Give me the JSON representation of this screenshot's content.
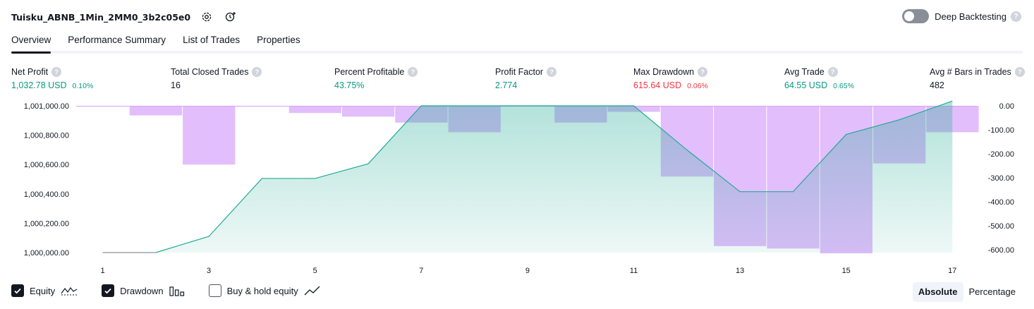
{
  "header": {
    "title": "Tuisku_ABNB_1Min_2MM0_3b2c05e0",
    "deep_backtesting_label": "Deep Backtesting",
    "help_glyph": "?"
  },
  "tabs": [
    {
      "label": "Overview",
      "active": true
    },
    {
      "label": "Performance Summary",
      "active": false
    },
    {
      "label": "List of Trades",
      "active": false
    },
    {
      "label": "Properties",
      "active": false
    }
  ],
  "metrics": {
    "net_profit": {
      "label": "Net Profit",
      "value": "1,032.78 USD",
      "pct": "0.10%"
    },
    "total_closed_trades": {
      "label": "Total Closed Trades",
      "value": "16"
    },
    "percent_profitable": {
      "label": "Percent Profitable",
      "value": "43.75%"
    },
    "profit_factor": {
      "label": "Profit Factor",
      "value": "2.774"
    },
    "max_drawdown": {
      "label": "Max Drawdown",
      "value": "615.64 USD",
      "pct": "0.06%"
    },
    "avg_trade": {
      "label": "Avg Trade",
      "value": "64.55 USD",
      "pct": "0.65%"
    },
    "avg_bars": {
      "label": "Avg # Bars in Trades",
      "value": "482"
    }
  },
  "colors": {
    "equity_line": "#22ab94",
    "equity_fill": "#22ab94",
    "drawdown_bar": "#ce93fa",
    "buy_hold_line": "#8d8f99",
    "positive": "#089981",
    "negative": "#f23645"
  },
  "chart_data": {
    "type": "line",
    "x": [
      1,
      2,
      3,
      4,
      5,
      6,
      7,
      8,
      9,
      10,
      11,
      12,
      13,
      14,
      15,
      16,
      17
    ],
    "x_ticks": [
      "1",
      "3",
      "5",
      "7",
      "9",
      "11",
      "13",
      "15",
      "17"
    ],
    "left_axis_ticks": [
      "1,001,000.00",
      "1,000,800.00",
      "1,000,600.00",
      "1,000,400.00",
      "1,000,200.00",
      "1,000,000.00"
    ],
    "right_axis_ticks": [
      "0.00",
      "-100.00",
      "-200.00",
      "-300.00",
      "-400.00",
      "-500.00",
      "-600.00"
    ],
    "ylim_left": [
      1000000,
      1001000
    ],
    "ylim_right": [
      -600,
      0
    ],
    "series": [
      {
        "name": "Equity",
        "kind": "area",
        "values": [
          1000000,
          1000000,
          1000110,
          1000505,
          1000505,
          1000605,
          1001000,
          1001000,
          1001000,
          1001000,
          1001000,
          1000700,
          1000415,
          1000415,
          1000805,
          1000905,
          1001033
        ]
      },
      {
        "name": "Drawdown",
        "kind": "bar",
        "values": [
          -3,
          -40,
          -245,
          -3,
          -30,
          -45,
          -70,
          -110,
          -3,
          -70,
          -25,
          -295,
          -585,
          -595,
          -615,
          -240,
          -110
        ]
      }
    ],
    "grid": false,
    "legend": "bottom-left"
  },
  "legend": [
    {
      "label": "Equity",
      "checked": true
    },
    {
      "label": "Drawdown",
      "checked": true
    },
    {
      "label": "Buy & hold equity",
      "checked": false
    }
  ],
  "modes": [
    {
      "label": "Absolute",
      "active": true
    },
    {
      "label": "Percentage",
      "active": false
    }
  ]
}
